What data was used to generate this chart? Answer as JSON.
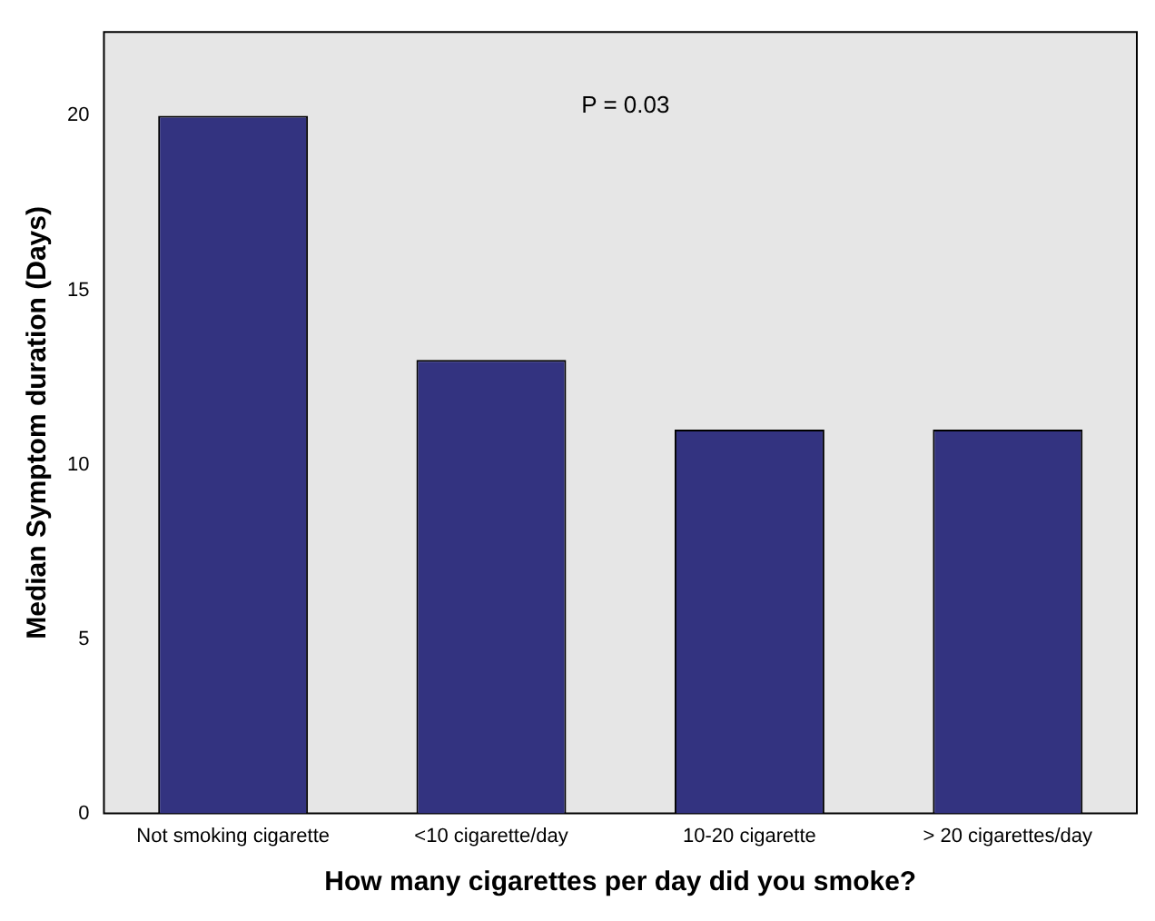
{
  "chart_data": {
    "type": "bar",
    "xlabel": "How many cigarettes per day did you smoke?",
    "ylabel": "Median Symptom duration (Days)",
    "categories": [
      "Not smoking cigarette",
      "<10 cigarette/day",
      "10-20 cigarette",
      "> 20 cigarettes/day"
    ],
    "values": [
      20,
      13,
      11,
      11
    ],
    "color": "#333380",
    "ylim": [
      0,
      22.4
    ],
    "yticks": [
      0,
      5,
      10,
      15,
      20
    ],
    "grid": false,
    "legend": false,
    "annotations": [
      "P = 0.03"
    ]
  }
}
